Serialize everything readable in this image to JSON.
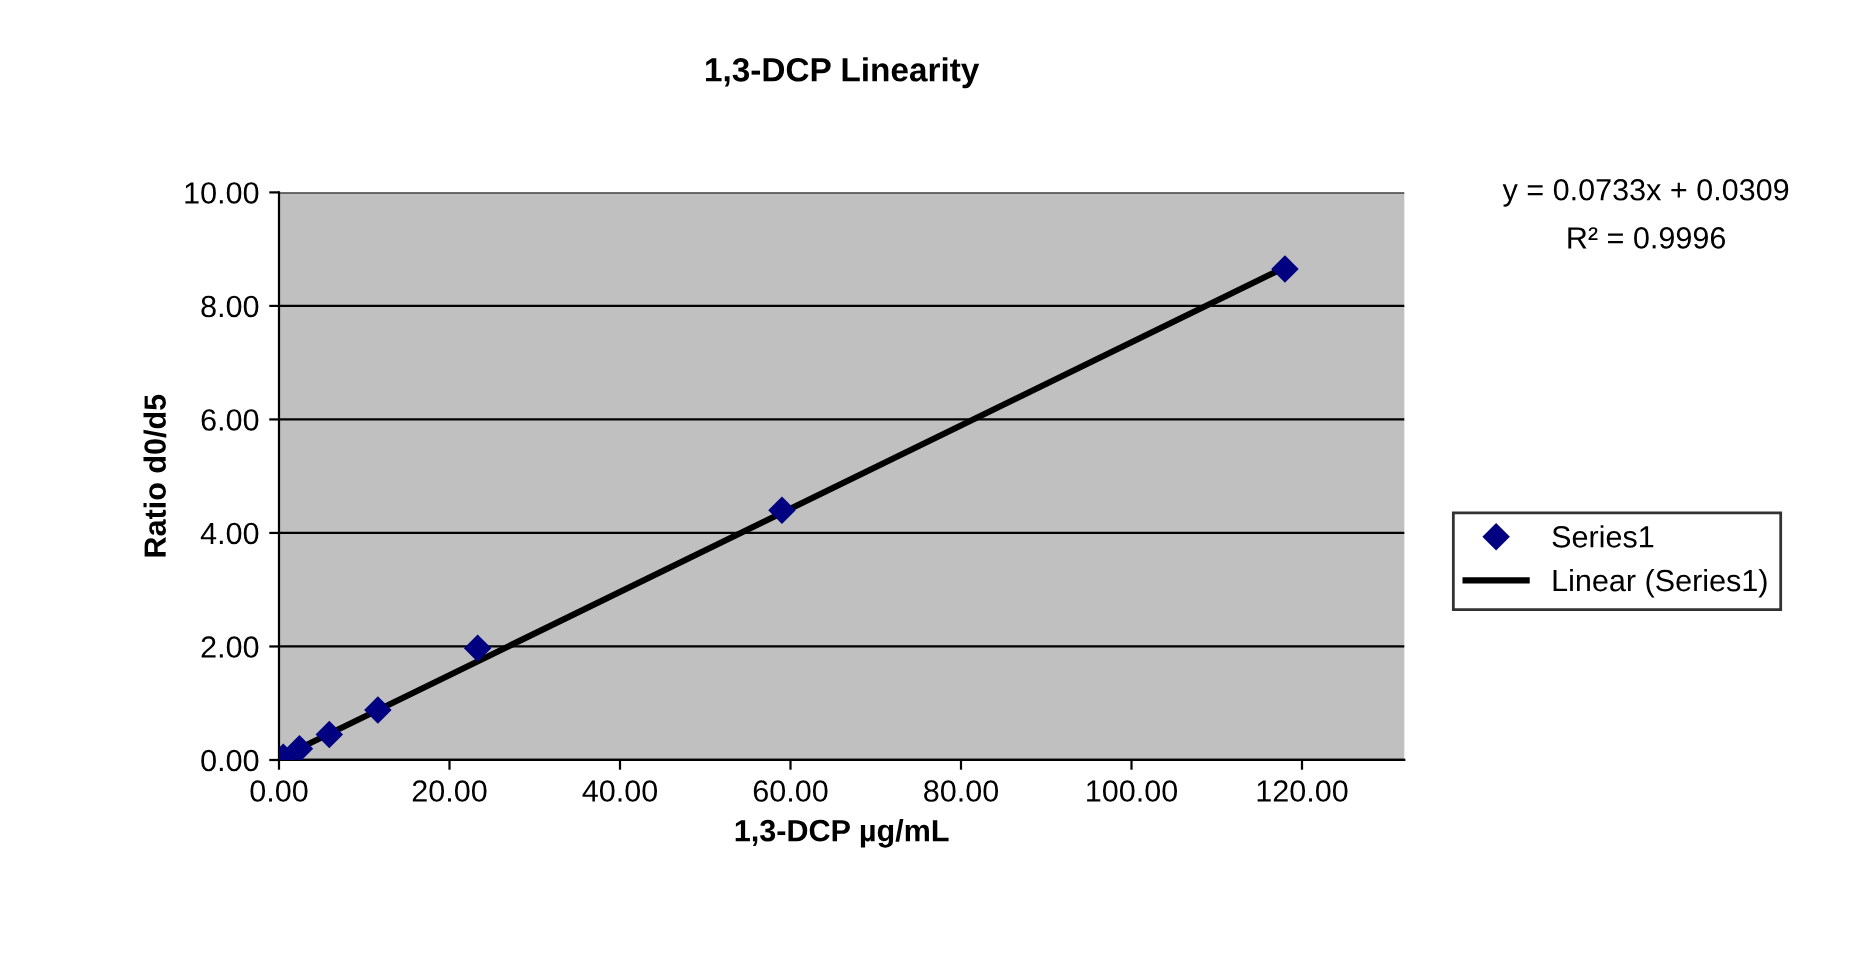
{
  "chart_data": {
    "type": "scatter",
    "title": "1,3-DCP Linearity",
    "xlabel": "1,3-DCP µg/mL",
    "ylabel": "Ratio d0/d5",
    "series": [
      {
        "name": "Series1",
        "color": "#000080",
        "marker": "diamond",
        "x": [
          0.5,
          2.4,
          5.9,
          11.6,
          23.3,
          59.0,
          118.0
        ],
        "values": [
          0.05,
          0.2,
          0.45,
          0.88,
          1.97,
          4.4,
          8.65
        ]
      },
      {
        "name": "Linear (Series1)",
        "type": "line",
        "color": "#000000",
        "marker": "none",
        "x": [
          0,
          118.0
        ],
        "values": [
          0.03,
          8.68
        ]
      }
    ],
    "xlim": [
      0,
      132
    ],
    "xticks": [
      {
        "value": 0,
        "label": "0.00"
      },
      {
        "value": 20,
        "label": "20.00"
      },
      {
        "value": 40,
        "label": "40.00"
      },
      {
        "value": 60,
        "label": "60.00"
      },
      {
        "value": 80,
        "label": "80.00"
      },
      {
        "value": 100,
        "label": "100.00"
      },
      {
        "value": 120,
        "label": "120.00"
      }
    ],
    "ylim": [
      0,
      10
    ],
    "yticks": [
      {
        "value": 0,
        "label": "0.00"
      },
      {
        "value": 2,
        "label": "2.00"
      },
      {
        "value": 4,
        "label": "4.00"
      },
      {
        "value": 6,
        "label": "6.00"
      },
      {
        "value": 8,
        "label": "8.00"
      },
      {
        "value": 10,
        "label": "10.00"
      }
    ],
    "grid": "y",
    "legend": "right",
    "annotations": [
      "y = 0.0733x + 0.0309",
      "R² = 0.9996"
    ]
  }
}
